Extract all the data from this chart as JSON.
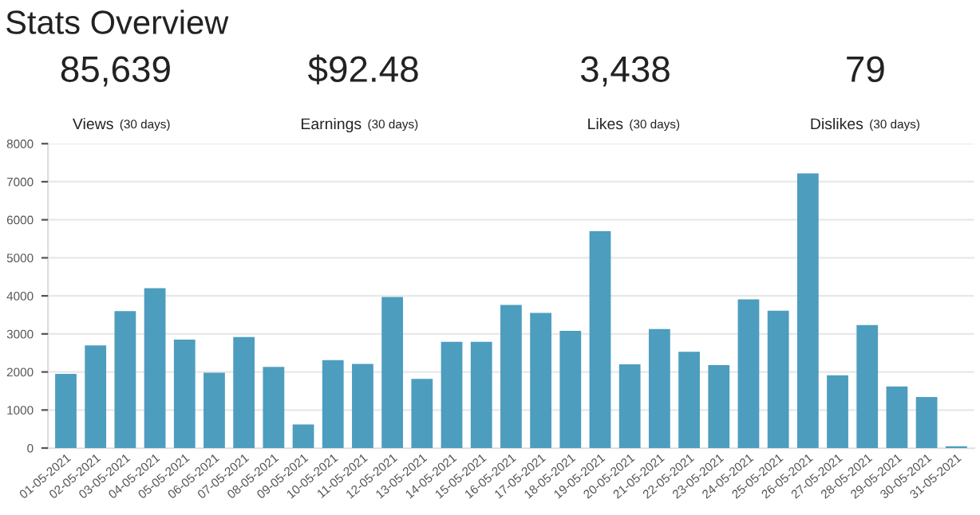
{
  "chart_data": [
    {
      "type": "other",
      "title": "Stats Overview",
      "annotations": [
        "85,639",
        "Views",
        "(30 days)",
        "$92.48",
        "Earnings",
        "(30 days)",
        "3,438",
        "Likes",
        "(30 days)",
        "79",
        "Dislikes",
        "(30 days)"
      ]
    },
    {
      "type": "bar",
      "categories": [
        "01-05-2021",
        "02-05-2021",
        "03-05-2021",
        "04-05-2021",
        "05-05-2021",
        "06-05-2021",
        "07-05-2021",
        "08-05-2021",
        "09-05-2021",
        "10-05-2021",
        "11-05-2021",
        "12-05-2021",
        "13-05-2021",
        "14-05-2021",
        "15-05-2021",
        "16-05-2021",
        "17-05-2021",
        "18-05-2021",
        "19-05-2021",
        "20-05-2021",
        "21-05-2021",
        "22-05-2021",
        "23-05-2021",
        "24-05-2021",
        "25-05-2021",
        "26-05-2021",
        "27-05-2021",
        "28-05-2021",
        "29-05-2021",
        "30-05-2021",
        "31-05-2021"
      ],
      "values": [
        1950,
        2700,
        3600,
        4200,
        2850,
        1980,
        2920,
        2130,
        620,
        2310,
        2210,
        3970,
        1820,
        2790,
        2790,
        3760,
        3550,
        3080,
        5700,
        2200,
        3130,
        2530,
        2180,
        3910,
        3610,
        7220,
        1910,
        3230,
        1620,
        1340,
        50
      ],
      "color": "#4d9dbf",
      "ylim": [
        0,
        8000
      ],
      "yticks": [
        0,
        1000,
        2000,
        3000,
        4000,
        5000,
        6000,
        7000,
        8000
      ],
      "grid": "y",
      "legend": false
    }
  ]
}
